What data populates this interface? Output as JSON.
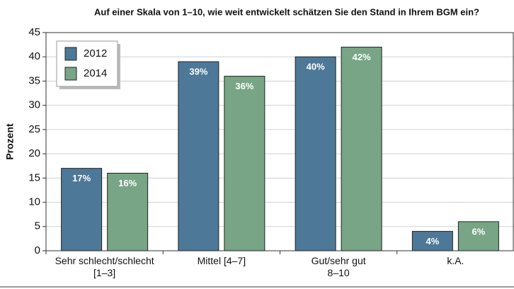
{
  "chart_data": {
    "type": "bar",
    "title": "Auf einer Skala von 1–10, wie weit entwickelt schätzen Sie den Stand in Ihrem BGM ein?",
    "ylabel": "Prozent",
    "categories": [
      "Sehr schlecht/schlecht\n[1–3]",
      "Mittel [4–7]",
      "Gut/sehr gut\n8–10",
      "k.A."
    ],
    "series": [
      {
        "name": "2012",
        "color": "#4e7898",
        "values": [
          17,
          39,
          40,
          4
        ],
        "value_labels": [
          "17%",
          "39%",
          "40%",
          "4%"
        ]
      },
      {
        "name": "2014",
        "color": "#77a585",
        "values": [
          16,
          36,
          42,
          6
        ],
        "value_labels": [
          "16%",
          "36%",
          "42%",
          "6%"
        ]
      }
    ],
    "ylim": [
      0,
      45
    ],
    "yticks": [
      0,
      5,
      10,
      15,
      20,
      25,
      30,
      35,
      40,
      45
    ],
    "grid": true,
    "legend": "upper left"
  }
}
